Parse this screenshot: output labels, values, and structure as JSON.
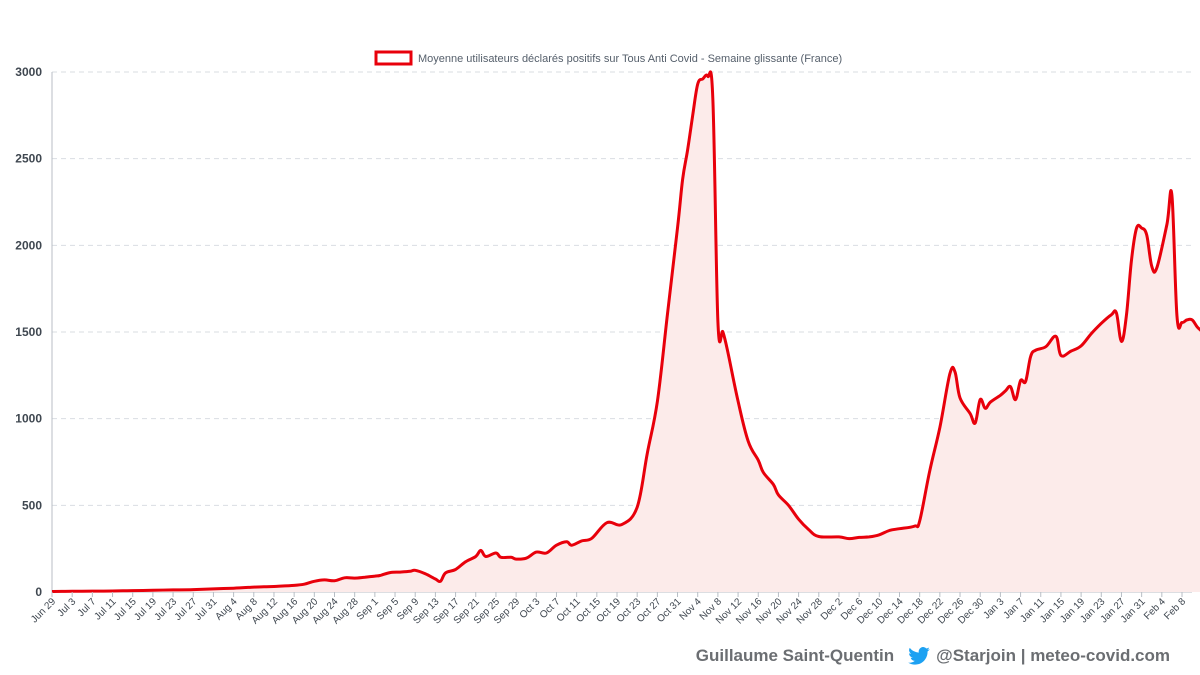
{
  "chart_data": {
    "type": "area",
    "title": "",
    "legend": {
      "label": "Moyenne utilisateurs déclarés positifs sur Tous Anti Covid - Semaine glissante (France)",
      "position": "top-center"
    },
    "xlabel": "",
    "ylabel": "",
    "ylim": [
      0,
      3000
    ],
    "yticks": [
      0,
      500,
      1000,
      1500,
      2000,
      2500,
      3000
    ],
    "grid": true,
    "series_color": "#e8000b",
    "fill_color": "#fcebea",
    "x_tick_labels": [
      "Jun 29",
      "Jul 3",
      "Jul 7",
      "Jul 11",
      "Jul 15",
      "Jul 19",
      "Jul 23",
      "Jul 27",
      "Jul 31",
      "Aug 4",
      "Aug 8",
      "Aug 12",
      "Aug 16",
      "Aug 20",
      "Aug 24",
      "Aug 28",
      "Sep 1",
      "Sep 5",
      "Sep 9",
      "Sep 13",
      "Sep 17",
      "Sep 21",
      "Sep 25",
      "Sep 29",
      "Oct 3",
      "Oct 7",
      "Oct 11",
      "Oct 15",
      "Oct 19",
      "Oct 23",
      "Oct 27",
      "Oct 31",
      "Nov 4",
      "Nov 8",
      "Nov 12",
      "Nov 16",
      "Nov 20",
      "Nov 24",
      "Nov 28",
      "Dec 2",
      "Dec 6",
      "Dec 10",
      "Dec 14",
      "Dec 18",
      "Dec 22",
      "Dec 26",
      "Dec 30",
      "Jan 3",
      "Jan 7",
      "Jan 11",
      "Jan 15",
      "Jan 19",
      "Jan 23",
      "Jan 27",
      "Jan 31",
      "Feb 4",
      "Feb 8"
    ],
    "series": [
      {
        "name": "Moyenne utilisateurs déclarés positifs sur Tous Anti Covid - Semaine glissante (France)",
        "points": [
          [
            "Jun 29",
            3
          ],
          [
            "Jul 3",
            4
          ],
          [
            "Jul 7",
            5
          ],
          [
            "Jul 11",
            6
          ],
          [
            "Jul 15",
            8
          ],
          [
            "Jul 19",
            10
          ],
          [
            "Jul 23",
            12
          ],
          [
            "Jul 27",
            14
          ],
          [
            "Jul 31",
            18
          ],
          [
            "Aug 4",
            22
          ],
          [
            "Aug 8",
            28
          ],
          [
            "Aug 10",
            30
          ],
          [
            "Aug 12",
            32
          ],
          [
            "Aug 16",
            38
          ],
          [
            "Aug 18",
            45
          ],
          [
            "Aug 20",
            62
          ],
          [
            "Aug 22",
            70
          ],
          [
            "Aug 24",
            65
          ],
          [
            "Aug 26",
            82
          ],
          [
            "Aug 28",
            80
          ],
          [
            "Aug 30",
            85
          ],
          [
            "Sep 1",
            92
          ],
          [
            "Sep 2",
            95
          ],
          [
            "Sep 4",
            112
          ],
          [
            "Sep 6",
            115
          ],
          [
            "Sep 8",
            120
          ],
          [
            "Sep 9",
            125
          ],
          [
            "Sep 11",
            105
          ],
          [
            "Sep 13",
            75
          ],
          [
            "Sep 14",
            62
          ],
          [
            "Sep 15",
            110
          ],
          [
            "Sep 17",
            130
          ],
          [
            "Sep 19",
            175
          ],
          [
            "Sep 21",
            205
          ],
          [
            "Sep 22",
            240
          ],
          [
            "Sep 23",
            205
          ],
          [
            "Sep 25",
            225
          ],
          [
            "Sep 26",
            200
          ],
          [
            "Sep 28",
            200
          ],
          [
            "Sep 29",
            190
          ],
          [
            "Oct 1",
            195
          ],
          [
            "Oct 3",
            230
          ],
          [
            "Oct 5",
            225
          ],
          [
            "Oct 7",
            270
          ],
          [
            "Oct 9",
            290
          ],
          [
            "Oct 10",
            270
          ],
          [
            "Oct 12",
            295
          ],
          [
            "Oct 14",
            310
          ],
          [
            "Oct 17",
            400
          ],
          [
            "Oct 20",
            390
          ],
          [
            "Oct 23",
            490
          ],
          [
            "Oct 25",
            800
          ],
          [
            "Oct 27",
            1100
          ],
          [
            "Oct 29",
            1600
          ],
          [
            "Oct 31",
            2100
          ],
          [
            "Nov 1",
            2380
          ],
          [
            "Nov 2",
            2550
          ],
          [
            "Nov 3",
            2750
          ],
          [
            "Nov 4",
            2930
          ],
          [
            "Nov 5",
            2960
          ],
          [
            "Nov 6",
            2975
          ],
          [
            "Nov 7",
            2850
          ],
          [
            "Nov 8",
            1560
          ],
          [
            "Nov 9",
            1500
          ],
          [
            "Nov 10",
            1380
          ],
          [
            "Nov 12",
            1100
          ],
          [
            "Nov 14",
            870
          ],
          [
            "Nov 16",
            760
          ],
          [
            "Nov 17",
            690
          ],
          [
            "Nov 19",
            620
          ],
          [
            "Nov 20",
            560
          ],
          [
            "Nov 22",
            500
          ],
          [
            "Nov 24",
            420
          ],
          [
            "Nov 26",
            360
          ],
          [
            "Nov 28",
            320
          ],
          [
            "Dec 2",
            318
          ],
          [
            "Dec 4",
            308
          ],
          [
            "Dec 6",
            315
          ],
          [
            "Dec 8",
            318
          ],
          [
            "Dec 10",
            330
          ],
          [
            "Dec 12",
            355
          ],
          [
            "Dec 14",
            365
          ],
          [
            "Dec 17",
            380
          ],
          [
            "Dec 18",
            410
          ],
          [
            "Dec 20",
            700
          ],
          [
            "Dec 22",
            950
          ],
          [
            "Dec 24",
            1260
          ],
          [
            "Dec 25",
            1270
          ],
          [
            "Dec 26",
            1120
          ],
          [
            "Dec 28",
            1030
          ],
          [
            "Dec 29",
            975
          ],
          [
            "Dec 30",
            1110
          ],
          [
            "Dec 31",
            1060
          ],
          [
            "Jan 1",
            1095
          ],
          [
            "Jan 3",
            1135
          ],
          [
            "Jan 4",
            1160
          ],
          [
            "Jan 5",
            1185
          ],
          [
            "Jan 6",
            1110
          ],
          [
            "Jan 7",
            1220
          ],
          [
            "Jan 8",
            1215
          ],
          [
            "Jan 9",
            1360
          ],
          [
            "Jan 10",
            1395
          ],
          [
            "Jan 12",
            1415
          ],
          [
            "Jan 14",
            1475
          ],
          [
            "Jan 15",
            1365
          ],
          [
            "Jan 17",
            1390
          ],
          [
            "Jan 19",
            1420
          ],
          [
            "Jan 21",
            1490
          ],
          [
            "Jan 23",
            1550
          ],
          [
            "Jan 25",
            1600
          ],
          [
            "Jan 26",
            1610
          ],
          [
            "Jan 27",
            1445
          ],
          [
            "Jan 28",
            1600
          ],
          [
            "Jan 29",
            1920
          ],
          [
            "Jan 30",
            2100
          ],
          [
            "Jan 31",
            2100
          ],
          [
            "Feb 1",
            2060
          ],
          [
            "Feb 2",
            1880
          ],
          [
            "Feb 3",
            1870
          ],
          [
            "Feb 5",
            2120
          ],
          [
            "Feb 6",
            2290
          ],
          [
            "Feb 7",
            1590
          ],
          [
            "Feb 8",
            1555
          ],
          [
            "Feb 9",
            1570
          ],
          [
            "Feb 10",
            1570
          ],
          [
            "Feb 11",
            1530
          ],
          [
            "Feb 12",
            1500
          ],
          [
            "Feb 13",
            1450
          ]
        ]
      }
    ]
  },
  "footer": {
    "author": "Guillaume Saint-Quentin",
    "handle": "@Starjoin | meteo-covid.com",
    "icon": "twitter-bird-icon",
    "icon_color": "#1da1f2"
  }
}
